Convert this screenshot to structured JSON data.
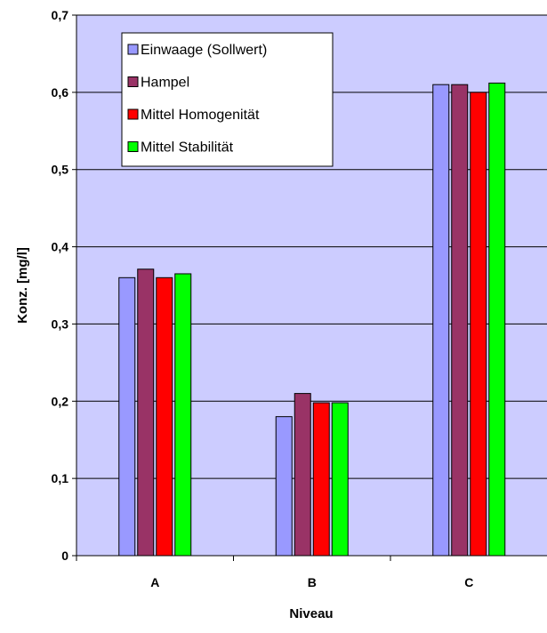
{
  "chart_data": {
    "type": "bar",
    "xlabel": "Niveau",
    "ylabel": "Konz. [mg/l]",
    "categories": [
      "A",
      "B",
      "C"
    ],
    "ylim": [
      0,
      0.7
    ],
    "yticks": [
      "0",
      "0,1",
      "0,2",
      "0,3",
      "0,4",
      "0,5",
      "0,6",
      "0,7"
    ],
    "grid": true,
    "legend_position": "top-left",
    "plot_background": "#CCCCFF",
    "series": [
      {
        "name": "Einwaage (Sollwert)",
        "color": "#9999FF",
        "values": [
          0.36,
          0.18,
          0.61
        ]
      },
      {
        "name": "Hampel",
        "color": "#993366",
        "values": [
          0.371,
          0.21,
          0.61
        ]
      },
      {
        "name": "Mittel Homogenität",
        "color": "#FF0000",
        "values": [
          0.36,
          0.198,
          0.6
        ]
      },
      {
        "name": "Mittel Stabilität",
        "color": "#00FF00",
        "values": [
          0.365,
          0.198,
          0.612
        ]
      }
    ]
  }
}
